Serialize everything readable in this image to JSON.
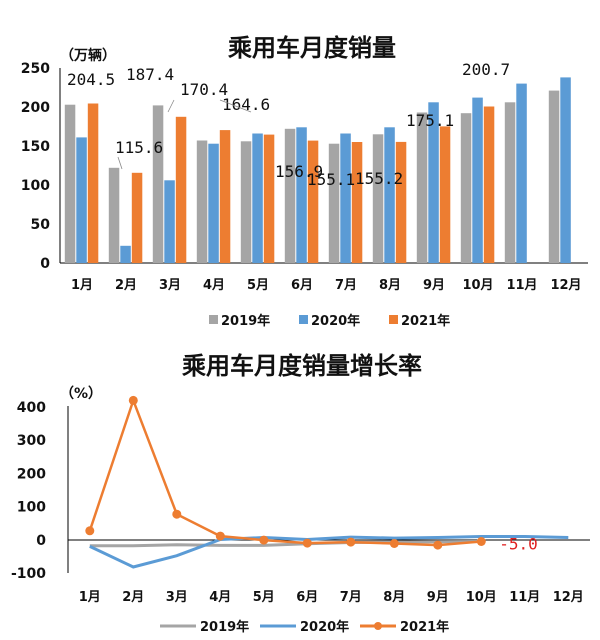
{
  "chart_data": [
    {
      "type": "bar",
      "title": "乘用车月度销量",
      "unit": "（万辆）",
      "categories": [
        "1月",
        "2月",
        "3月",
        "4月",
        "5月",
        "6月",
        "7月",
        "8月",
        "9月",
        "10月",
        "11月",
        "12月"
      ],
      "ylim": [
        0,
        250
      ],
      "yticks": [
        "0",
        "50",
        "100",
        "150",
        "200",
        "250"
      ],
      "grid": false,
      "legend_position": "bottom",
      "series": [
        {
          "name": "2019年",
          "color": "#a5a5a5",
          "values": [
            203,
            122,
            202,
            157,
            156,
            172,
            153,
            165,
            193,
            192,
            206,
            221
          ]
        },
        {
          "name": "2020年",
          "color": "#5b9bd5",
          "values": [
            161,
            22,
            106,
            153,
            166,
            174,
            166,
            174,
            206,
            212,
            230,
            238
          ]
        },
        {
          "name": "2021年",
          "color": "#ed7d31",
          "values": [
            204.5,
            115.6,
            187.4,
            170.4,
            164.6,
            156.9,
            155.1,
            155.2,
            175.1,
            200.7,
            null,
            null
          ]
        }
      ],
      "data_labels": [
        "204.5",
        "115.6",
        "187.4",
        "170.4",
        "164.6",
        "156.9",
        "155.1",
        "155.2",
        "175.1",
        "200.7"
      ]
    },
    {
      "type": "line",
      "title": "乘用车月度销量增长率",
      "unit": "（%）",
      "categories": [
        "1月",
        "2月",
        "3月",
        "4月",
        "5月",
        "6月",
        "7月",
        "8月",
        "9月",
        "10月",
        "11月",
        "12月"
      ],
      "ylim": [
        -100,
        400
      ],
      "yticks": [
        "-100",
        "0",
        "100",
        "200",
        "300",
        "400"
      ],
      "grid": false,
      "legend_position": "bottom",
      "series": [
        {
          "name": "2019年",
          "color": "#a5a5a5",
          "values": [
            -18,
            -18,
            -15,
            -17,
            -17,
            -12,
            -8,
            -7,
            -6,
            -5,
            null,
            null
          ]
        },
        {
          "name": "2020年",
          "color": "#5b9bd5",
          "values": [
            -20,
            -82,
            -48,
            1,
            7,
            1,
            8,
            5,
            7,
            10,
            10,
            7
          ]
        },
        {
          "name": "2021年",
          "color": "#ed7d31",
          "values": [
            27,
            420,
            77,
            11,
            -1,
            -10,
            -7,
            -11,
            -16,
            -5,
            null,
            null
          ]
        }
      ],
      "annotation": "-5.0"
    }
  ]
}
